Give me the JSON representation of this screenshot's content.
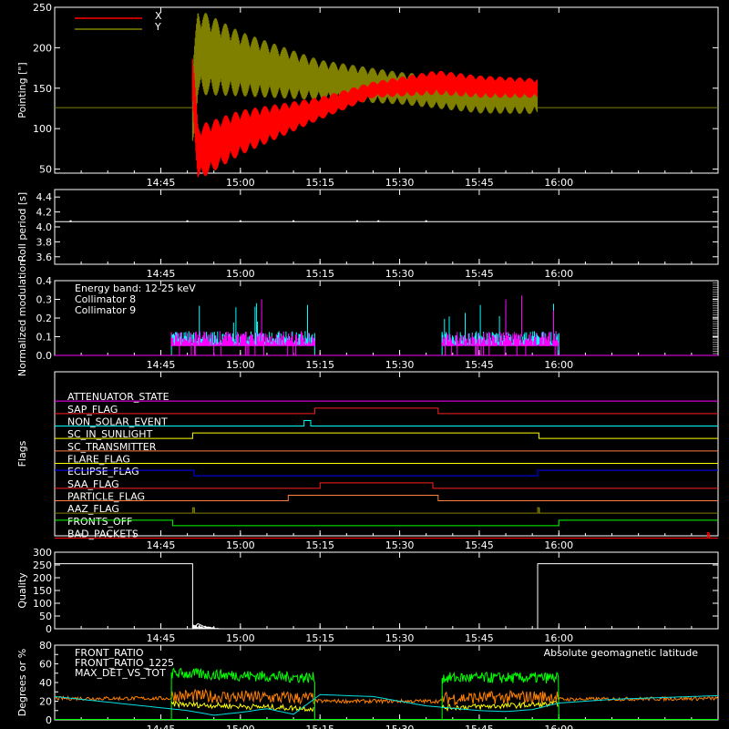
{
  "colors": {
    "background": "#000000",
    "axes": "#ffffff",
    "x_pointing": "#ff0000",
    "y_pointing": "#808000",
    "roll": "#ffffff",
    "collimator8": "#00ffff",
    "collimator9": "#ff00ff",
    "quality": "#ffffff",
    "front_ratio": "#ffff00",
    "front_ratio_1225": "#00ff00",
    "max_det_vs_tot": "#ff8000",
    "geomag": "#00e0e0"
  },
  "time_ticks": [
    "14:45",
    "15:00",
    "15:15",
    "15:30",
    "15:45",
    "16:00"
  ],
  "chart_data": [
    {
      "type": "line",
      "panel": "pointing",
      "ylabel": "Pointing [\"]",
      "ylim": [
        45,
        250
      ],
      "yticks": [
        50,
        100,
        150,
        200,
        250
      ],
      "legend": [
        "X",
        "Y"
      ],
      "series": [
        {
          "name": "X",
          "color": "#ff0000",
          "points": [
            [
              "14:25",
              126
            ],
            [
              "14:51",
              126
            ],
            [
              "14:51",
              160
            ],
            [
              "14:52",
              70
            ],
            [
              "15:00",
              95
            ],
            [
              "15:15",
              125
            ],
            [
              "15:25",
              148
            ],
            [
              "15:37",
              157
            ],
            [
              "15:45",
              152
            ],
            [
              "15:56",
              150
            ]
          ],
          "amplitude": [
            [
              "14:51",
              35
            ],
            [
              "15:00",
              28
            ],
            [
              "15:15",
              14
            ],
            [
              "15:25",
              10
            ],
            [
              "15:37",
              15
            ],
            [
              "15:56",
              12
            ]
          ]
        },
        {
          "name": "Y",
          "color": "#808000",
          "points": [
            [
              "14:25",
              126
            ],
            [
              "14:51",
              126
            ],
            [
              "14:52",
              195
            ],
            [
              "15:00",
              180
            ],
            [
              "15:15",
              160
            ],
            [
              "15:30",
              150
            ],
            [
              "15:45",
              140
            ],
            [
              "15:56",
              140
            ],
            [
              "15:56",
              126
            ],
            [
              "16:30",
              126
            ]
          ],
          "amplitude": [
            [
              "14:51",
              55
            ],
            [
              "15:00",
              40
            ],
            [
              "15:15",
              25
            ],
            [
              "15:30",
              20
            ],
            [
              "15:56",
              22
            ]
          ]
        }
      ]
    },
    {
      "type": "line",
      "panel": "roll",
      "ylabel": "Roll period [s]",
      "ylim": [
        3.5,
        4.5
      ],
      "yticks": [
        3.6,
        3.8,
        4.0,
        4.2,
        4.4
      ],
      "series": [
        {
          "name": "Roll period",
          "points": [
            [
              "14:25",
              4.07
            ],
            [
              "16:30",
              4.07
            ]
          ]
        }
      ]
    },
    {
      "type": "bar",
      "panel": "modulation",
      "ylabel": "Normalized modulation",
      "ylim": [
        0,
        0.4
      ],
      "yticks": [
        0.0,
        0.1,
        0.2,
        0.3,
        0.4
      ],
      "annotation": "Energy band: 12-25 keV",
      "legend": [
        "Collimator 8",
        "Collimator 9"
      ],
      "intervals": [
        [
          "14:47",
          "15:14"
        ],
        [
          "15:38",
          "16:00"
        ]
      ],
      "typical_level": 0.1,
      "spikes": [
        [
          "15:04",
          0.3
        ],
        [
          "15:50",
          0.3
        ],
        [
          "15:53",
          0.32
        ],
        [
          "15:59",
          0.24
        ]
      ]
    },
    {
      "type": "line",
      "panel": "flags",
      "ylabel": "Flags",
      "flags": [
        {
          "name": "ATTENUATOR_STATE",
          "color": "#ff00ff",
          "base": "low",
          "high_intervals": []
        },
        {
          "name": "SAP_FLAG",
          "color": "#ff2020",
          "base": "low",
          "high_intervals": [
            [
              "15:14",
              "15:37"
            ]
          ]
        },
        {
          "name": "NON_SOLAR_EVENT",
          "color": "#00ffff",
          "base": "low",
          "high_intervals": [
            [
              "15:12",
              "15:13"
            ]
          ]
        },
        {
          "name": "SC_IN_SUNLIGHT",
          "color": "#ffff00",
          "base": "low",
          "high_intervals": [
            [
              "14:51",
              "15:56"
            ]
          ]
        },
        {
          "name": "SC_TRANSMITTER",
          "color": "#ff8040",
          "base": "low",
          "high_intervals": []
        },
        {
          "name": "FLARE_FLAG",
          "color": "#ffff00",
          "base": "low",
          "high_intervals": []
        },
        {
          "name": "ECLIPSE_FLAG",
          "color": "#0000ff",
          "base": "high",
          "high_intervals": [
            [
              "14:25",
              "14:51"
            ],
            [
              "15:56",
              "16:30"
            ]
          ]
        },
        {
          "name": "SAA_FLAG",
          "color": "#ff2020",
          "base": "low",
          "high_intervals": [
            [
              "15:15",
              "15:36"
            ]
          ]
        },
        {
          "name": "PARTICLE_FLAG",
          "color": "#ff8040",
          "base": "low",
          "high_intervals": [
            [
              "15:09",
              "15:37"
            ]
          ]
        },
        {
          "name": "AAZ_FLAG",
          "color": "#808000",
          "base": "low",
          "high_intervals": [
            [
              "14:51",
              "14:51"
            ],
            [
              "15:56",
              "15:56"
            ]
          ]
        },
        {
          "name": "FRONTS_OFF",
          "color": "#00ff00",
          "base": "high",
          "high_intervals": [
            [
              "14:25",
              "14:47"
            ],
            [
              "16:00",
              "16:30"
            ]
          ]
        },
        {
          "name": "BAD_PACKETS",
          "color": "#ff0000",
          "base": "low",
          "high_intervals": [
            [
              "16:28",
              "16:28"
            ]
          ]
        }
      ]
    },
    {
      "type": "line",
      "panel": "quality",
      "ylabel": "Quality",
      "ylim": [
        0,
        300
      ],
      "yticks": [
        0,
        50,
        100,
        150,
        200,
        250,
        300
      ],
      "series": [
        {
          "name": "Quality",
          "points": [
            [
              "14:25",
              255
            ],
            [
              "14:51",
              255
            ],
            [
              "14:51",
              0
            ],
            [
              "14:52",
              20
            ],
            [
              "14:53",
              10
            ],
            [
              "14:54",
              5
            ],
            [
              "14:55",
              0
            ],
            [
              "15:56",
              0
            ],
            [
              "15:56",
              255
            ],
            [
              "16:30",
              255
            ]
          ]
        }
      ]
    },
    {
      "type": "line",
      "panel": "ratios",
      "ylabel": "Degrees or %",
      "ylim": [
        0,
        80
      ],
      "yticks": [
        0,
        10,
        20,
        30,
        40,
        50,
        60,
        70,
        80
      ],
      "legend": [
        "FRONT_RATIO",
        "FRONT_RATIO_1225",
        "MAX_DET_VS_TOT"
      ],
      "annotation": "Absolute geomagnetic latitude",
      "series": [
        {
          "name": "FRONT_RATIO",
          "color": "#ffff00",
          "points": [
            [
              "14:47",
              17
            ],
            [
              "15:14",
              12
            ],
            [
              "15:38",
              13
            ],
            [
              "16:00",
              17
            ]
          ]
        },
        {
          "name": "FRONT_RATIO_1225",
          "color": "#00ff00",
          "points": [
            [
              "14:25",
              0
            ],
            [
              "14:47",
              0
            ],
            [
              "14:47",
              50
            ],
            [
              "15:14",
              45
            ],
            [
              "15:14",
              0
            ],
            [
              "15:38",
              0
            ],
            [
              "15:38",
              52
            ],
            [
              "16:00",
              52
            ],
            [
              "16:00",
              0
            ],
            [
              "16:30",
              0
            ]
          ]
        },
        {
          "name": "MAX_DET_VS_TOT",
          "color": "#ff8000",
          "points": [
            [
              "14:25",
              23
            ],
            [
              "14:47",
              23
            ],
            [
              "15:14",
              20
            ],
            [
              "15:38",
              20
            ],
            [
              "16:00",
              22
            ],
            [
              "16:30",
              23
            ]
          ]
        },
        {
          "name": "Absolute geomagnetic latitude",
          "color": "#00e0e0",
          "points": [
            [
              "14:25",
              25
            ],
            [
              "14:50",
              10
            ],
            [
              "14:55",
              5
            ],
            [
              "15:00",
              8
            ],
            [
              "15:05",
              12
            ],
            [
              "15:10",
              6
            ],
            [
              "15:15",
              27
            ],
            [
              "15:25",
              25
            ],
            [
              "15:35",
              15
            ],
            [
              "15:45",
              10
            ],
            [
              "15:50",
              9
            ],
            [
              "15:55",
              11
            ],
            [
              "16:00",
              18
            ],
            [
              "16:10",
              22
            ],
            [
              "16:30",
              26
            ]
          ]
        }
      ]
    }
  ]
}
